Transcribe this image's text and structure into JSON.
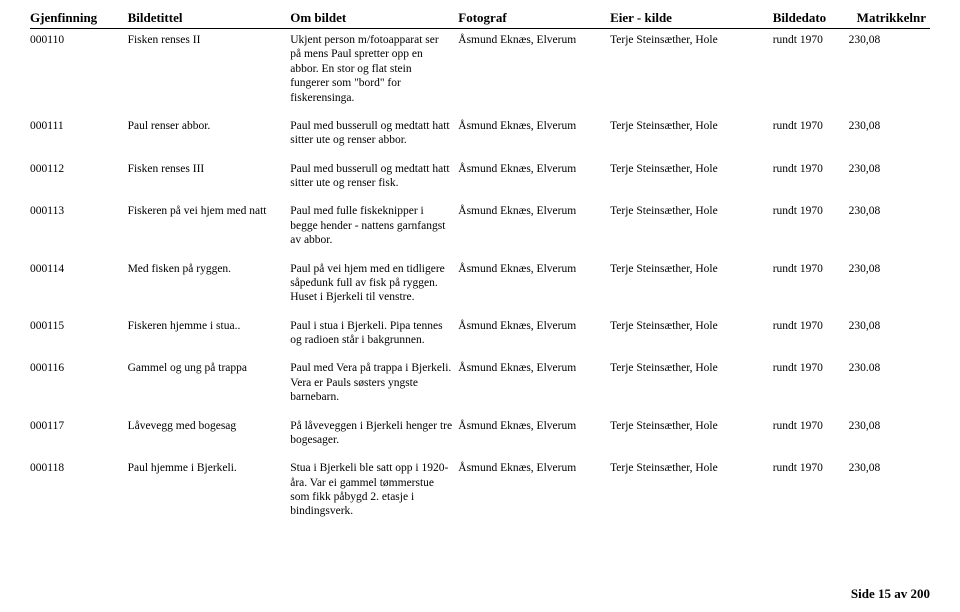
{
  "headers": {
    "gjenfinning": "Gjenfinning",
    "bildetittel": "Bildetittel",
    "ombildet": "Om bildet",
    "fotograf": "Fotograf",
    "eierkilde": "Eier - kilde",
    "bildedato": "Bildedato",
    "matrikkelnr": "Matrikkelnr"
  },
  "rows": [
    {
      "gjenfinning": "000110",
      "bildetittel": "Fisken renses II",
      "ombildet": "Ukjent person m/fotoapparat ser på mens Paul spretter opp en abbor. En stor og flat stein fungerer som \"bord\" for fiskerensinga.",
      "fotograf": "Åsmund Eknæs, Elverum",
      "eierkilde": "Terje Steinsæther, Hole",
      "bildedato": "rundt 1970",
      "matrikkelnr": "230,08"
    },
    {
      "gjenfinning": "000111",
      "bildetittel": "Paul renser abbor.",
      "ombildet": "Paul med busserull og medtatt hatt sitter ute og renser abbor.",
      "fotograf": "Åsmund Eknæs, Elverum",
      "eierkilde": "Terje Steinsæther, Hole",
      "bildedato": "rundt 1970",
      "matrikkelnr": "230,08"
    },
    {
      "gjenfinning": "000112",
      "bildetittel": "Fisken renses III",
      "ombildet": "Paul med busserull og medtatt hatt sitter ute og renser fisk.",
      "fotograf": "Åsmund Eknæs, Elverum",
      "eierkilde": "Terje Steinsæther, Hole",
      "bildedato": "rundt 1970",
      "matrikkelnr": "230,08"
    },
    {
      "gjenfinning": "000113",
      "bildetittel": "Fiskeren på vei hjem med natt",
      "ombildet": "Paul med fulle fiskeknipper i begge hender - nattens garnfangst av abbor.",
      "fotograf": "Åsmund Eknæs, Elverum",
      "eierkilde": "Terje Steinsæther, Hole",
      "bildedato": "rundt 1970",
      "matrikkelnr": "230,08"
    },
    {
      "gjenfinning": "000114",
      "bildetittel": "Med fisken på ryggen.",
      "ombildet": "Paul på vei hjem med en tidligere såpedunk full av fisk på ryggen. Huset i Bjerkeli til venstre.",
      "fotograf": "Åsmund Eknæs, Elverum",
      "eierkilde": "Terje Steinsæther, Hole",
      "bildedato": "rundt 1970",
      "matrikkelnr": "230,08"
    },
    {
      "gjenfinning": "000115",
      "bildetittel": "Fiskeren hjemme i stua..",
      "ombildet": "Paul i stua i Bjerkeli. Pipa tennes og radioen står i bakgrunnen.",
      "fotograf": "Åsmund Eknæs, Elverum",
      "eierkilde": "Terje Steinsæther, Hole",
      "bildedato": "rundt 1970",
      "matrikkelnr": "230,08"
    },
    {
      "gjenfinning": "000116",
      "bildetittel": "Gammel og ung på trappa",
      "ombildet": "Paul med Vera på trappa i Bjerkeli. Vera er Pauls søsters yngste barnebarn.",
      "fotograf": "Åsmund Eknæs, Elverum",
      "eierkilde": "Terje Steinsæther, Hole",
      "bildedato": "rundt 1970",
      "matrikkelnr": "230.08"
    },
    {
      "gjenfinning": "000117",
      "bildetittel": "Låvevegg med bogesag",
      "ombildet": "På låveveggen i Bjerkeli henger tre bogesager.",
      "fotograf": "Åsmund Eknæs, Elverum",
      "eierkilde": "Terje Steinsæther, Hole",
      "bildedato": "rundt 1970",
      "matrikkelnr": "230,08"
    },
    {
      "gjenfinning": "000118",
      "bildetittel": "Paul hjemme i Bjerkeli.",
      "ombildet": "Stua i Bjerkeli ble satt opp i 1920-åra. Var ei gammel tømmerstue som fikk påbygd 2. etasje i bindingsverk.",
      "fotograf": "Åsmund Eknæs, Elverum",
      "eierkilde": "Terje Steinsæther, Hole",
      "bildedato": "rundt 1970",
      "matrikkelnr": "230,08"
    }
  ],
  "footer": "Side 15 av 200"
}
